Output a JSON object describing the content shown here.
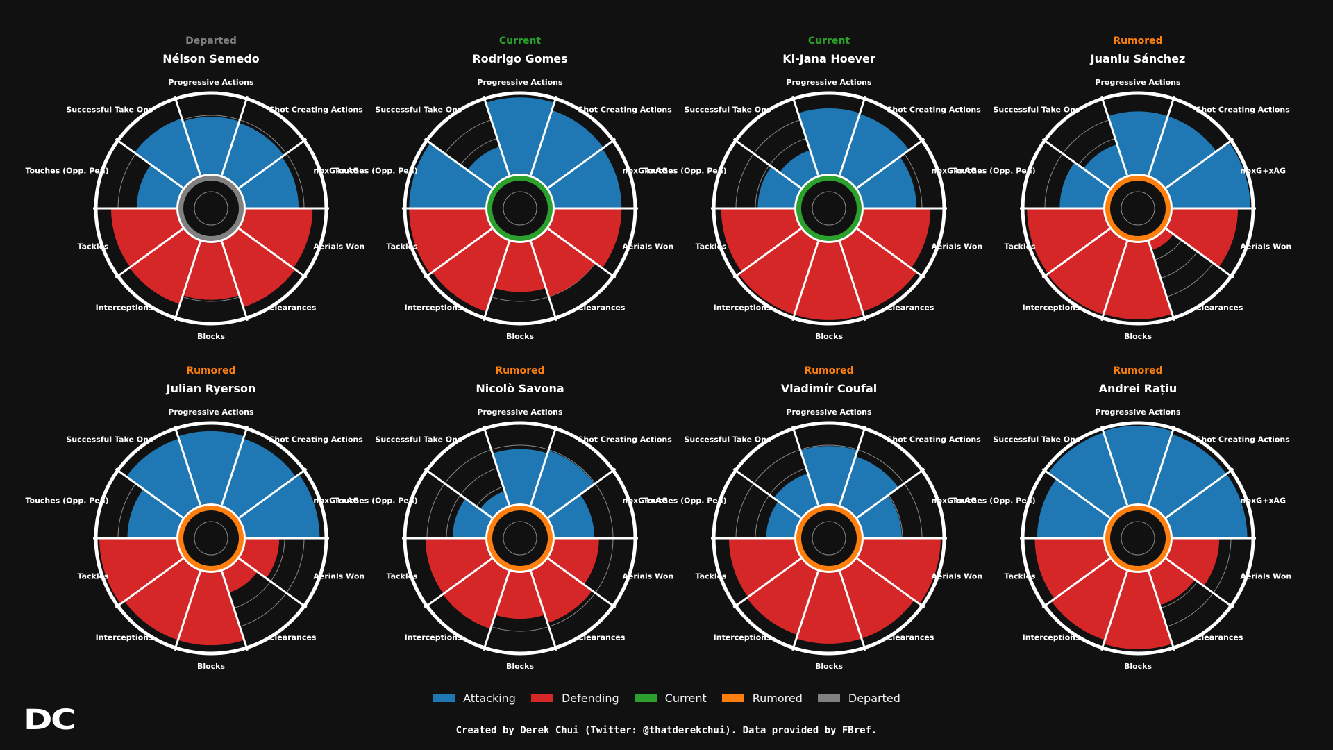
{
  "colors": {
    "attacking": "#1f77b4",
    "defending": "#d62728",
    "current": "#2ca02c",
    "rumored": "#ff7f0e",
    "departed": "#808080",
    "background": "#111111"
  },
  "legend": [
    {
      "label": "Attacking",
      "color": "#1f77b4"
    },
    {
      "label": "Defending",
      "color": "#d62728"
    },
    {
      "label": "Current",
      "color": "#2ca02c"
    },
    {
      "label": "Rumored",
      "color": "#ff7f0e"
    },
    {
      "label": "Departed",
      "color": "#808080"
    }
  ],
  "credit": "Created by Derek Chui (Twitter: @thatderekchui). Data provided by FBref.",
  "logo": "DC",
  "chart_data": {
    "type": "polar-bar",
    "scale": "percentile",
    "rlim": [
      0,
      100
    ],
    "gridlines": [
      25,
      50,
      75,
      100
    ],
    "categories": [
      "Progressive Actions",
      "Shot Creating Actions",
      "npxG+xAG",
      "Aerials Won",
      "Clearances",
      "Blocks",
      "Interceptions",
      "Tackles",
      "Touches (Opp. Pen)",
      "Successful Take Ons"
    ],
    "category_groups": [
      "Attacking",
      "Attacking",
      "Attacking",
      "Defending",
      "Defending",
      "Defending",
      "Defending",
      "Defending",
      "Attacking",
      "Attacking"
    ],
    "players": [
      {
        "status": "Departed",
        "name": "Nélson Semedo",
        "values": [
          73,
          71,
          68,
          86,
          89,
          73,
          85,
          84,
          51,
          77
        ]
      },
      {
        "status": "Current",
        "name": "Rodrigo Gomes",
        "values": [
          98,
          88,
          86,
          86,
          75,
          63,
          95,
          98,
          98,
          39
        ]
      },
      {
        "status": "Current",
        "name": "Ki-Jana Hoever",
        "values": [
          84,
          83,
          68,
          86,
          95,
          99,
          99,
          94,
          47,
          34
        ]
      },
      {
        "status": "Rumored",
        "name": "Juanlu Sánchez",
        "values": [
          80,
          80,
          100,
          84,
          12,
          98,
          99,
          98,
          56,
          42
        ]
      },
      {
        "status": "Rumored",
        "name": "Julian Ryerson",
        "values": [
          93,
          90,
          95,
          43,
          29,
          93,
          93,
          99,
          63,
          90
        ]
      },
      {
        "status": "Rumored",
        "name": "Nicolò Savona",
        "values": [
          70,
          74,
          51,
          57,
          70,
          59,
          78,
          77,
          42,
          19
        ]
      },
      {
        "status": "Rumored",
        "name": "Vladimír Coufal",
        "values": [
          74,
          66,
          49,
          99,
          91,
          91,
          86,
          84,
          36,
          43
        ]
      },
      {
        "status": "Rumored",
        "name": "Andrei Rațiu",
        "values": [
          100,
          96,
          96,
          60,
          46,
          98,
          93,
          88,
          85,
          98
        ]
      }
    ]
  }
}
